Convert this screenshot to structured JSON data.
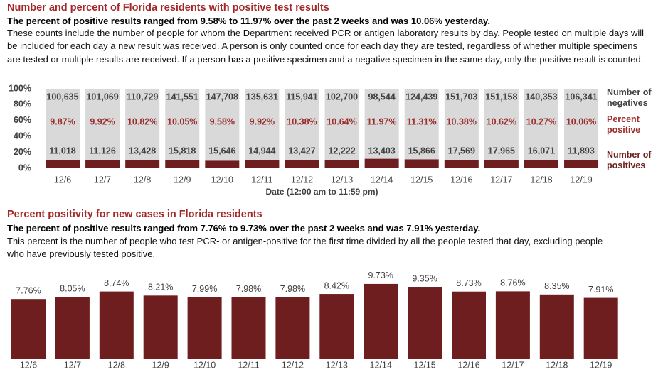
{
  "chart_data": [
    {
      "type": "stacked_percent_bar",
      "title": "Number and percent of Florida residents with positive test results",
      "subtitle": "The percent of positive results ranged from 9.58% to 11.97% over the past 2 weeks and was 10.06% yesterday.",
      "note": "These counts include the number of people for whom the Department received PCR or antigen laboratory results by day. People tested on multiple days will be included for each day a new result was received. A person is only counted once for each day they are tested, regardless of whether multiple specimens are tested or multiple results are received. If a person has a positive specimen and a negative specimen in the same day, only the positive result is counted.",
      "xlabel": "Date (12:00 am to 11:59 pm)",
      "categories": [
        "12/6",
        "12/7",
        "12/8",
        "12/9",
        "12/10",
        "12/11",
        "12/12",
        "12/13",
        "12/14",
        "12/15",
        "12/16",
        "12/17",
        "12/18",
        "12/19"
      ],
      "series": [
        {
          "name": "Number of negatives",
          "color": "#d9d9d9",
          "values": [
            100635,
            101069,
            110729,
            141551,
            147708,
            135631,
            115941,
            102700,
            98544,
            124439,
            151703,
            151158,
            140353,
            106341
          ],
          "value_labels": [
            "100,635",
            "101,069",
            "110,729",
            "141,551",
            "147,708",
            "135,631",
            "115,941",
            "102,700",
            "98,544",
            "124,439",
            "151,703",
            "151,158",
            "140,353",
            "106,341"
          ]
        },
        {
          "name": "Percent positive",
          "color": "#9b2d2d",
          "values": [
            9.87,
            9.92,
            10.82,
            10.05,
            9.58,
            9.92,
            10.38,
            10.64,
            11.97,
            11.31,
            10.38,
            10.62,
            10.27,
            10.06
          ],
          "value_labels": [
            "9.87%",
            "9.92%",
            "10.82%",
            "10.05%",
            "9.58%",
            "9.92%",
            "10.38%",
            "10.64%",
            "11.97%",
            "11.31%",
            "10.38%",
            "10.62%",
            "10.27%",
            "10.06%"
          ]
        },
        {
          "name": "Number of positives",
          "color": "#6e1e1e",
          "values": [
            11018,
            11126,
            13428,
            15818,
            15646,
            14944,
            13427,
            12222,
            13403,
            15866,
            17569,
            17965,
            16071,
            11893
          ],
          "value_labels": [
            "11,018",
            "11,126",
            "13,428",
            "15,818",
            "15,646",
            "14,944",
            "13,427",
            "12,222",
            "13,403",
            "15,866",
            "17,569",
            "17,965",
            "16,071",
            "11,893"
          ]
        }
      ],
      "ylim": [
        0,
        100
      ],
      "yticks": [
        {
          "value": 0,
          "label": "0%"
        },
        {
          "value": 20,
          "label": "20%"
        },
        {
          "value": 40,
          "label": "40%"
        },
        {
          "value": 60,
          "label": "60%"
        },
        {
          "value": 80,
          "label": "80%"
        },
        {
          "value": 100,
          "label": "100%"
        }
      ]
    },
    {
      "type": "bar",
      "title": "Percent positivity for new cases in Florida residents",
      "subtitle": "The percent of positive results ranged from 7.76% to 9.73% over the past 2 weeks and was 7.91% yesterday.",
      "note": "This percent is the number of people who test PCR- or antigen-positive for the first time divided by all the people tested that day, excluding people who have previously tested positive.",
      "categories": [
        "12/6",
        "12/7",
        "12/8",
        "12/9",
        "12/10",
        "12/11",
        "12/12",
        "12/13",
        "12/14",
        "12/15",
        "12/16",
        "12/17",
        "12/18",
        "12/19"
      ],
      "values": [
        7.76,
        8.05,
        8.74,
        8.21,
        7.99,
        7.98,
        7.98,
        8.42,
        9.73,
        9.35,
        8.73,
        8.76,
        8.35,
        7.91
      ],
      "value_labels": [
        "7.76%",
        "8.05%",
        "8.74%",
        "8.21%",
        "7.99%",
        "7.98%",
        "7.98%",
        "8.42%",
        "9.73%",
        "9.35%",
        "8.73%",
        "8.76%",
        "8.35%",
        "7.91%"
      ],
      "color": "#6e1e1e"
    }
  ]
}
